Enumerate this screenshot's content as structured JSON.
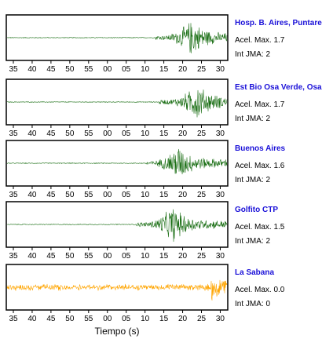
{
  "chart_data": {
    "type": "line",
    "xlabel": "Tiempo (s)",
    "x_tick_labels": [
      "35",
      "40",
      "45",
      "50",
      "55",
      "00",
      "05",
      "10",
      "15",
      "20",
      "25",
      "30"
    ],
    "colors": {
      "recorded": "#1a6e14",
      "no_data": "#ffa500",
      "station_label": "#1a10d8"
    },
    "panels": [
      {
        "station": "Hosp. B. Aires, Puntare",
        "acel_max_text": "Acel. Max. 1.7",
        "int_jma_text": "Int JMA: 2",
        "trace_color": "#1a6e14",
        "onset_tick_index": 7.55,
        "peak_tick_index": 9.5,
        "pre_event_noise": 0.02,
        "peak_amplitude": 0.95
      },
      {
        "station": "Est Bio Osa Verde, Osa",
        "acel_max_text": "Acel. Max. 1.7",
        "int_jma_text": "Int JMA: 2",
        "trace_color": "#1a6e14",
        "onset_tick_index": 7.75,
        "peak_tick_index": 9.8,
        "pre_event_noise": 0.02,
        "peak_amplitude": 0.95
      },
      {
        "station": "Buenos Aires",
        "acel_max_text": "Acel. Max. 1.6",
        "int_jma_text": "Int JMA: 2",
        "trace_color": "#1a6e14",
        "onset_tick_index": 7.05,
        "peak_tick_index": 8.75,
        "pre_event_noise": 0.02,
        "peak_amplitude": 0.95
      },
      {
        "station": "Golfito CTP",
        "acel_max_text": "Acel. Max. 1.5",
        "int_jma_text": "Int JMA: 2",
        "trace_color": "#1a6e14",
        "onset_tick_index": 6.55,
        "peak_tick_index": 8.5,
        "pre_event_noise": 0.02,
        "peak_amplitude": 0.95
      },
      {
        "station": "La Sabana",
        "acel_max_text": "Acel. Max. 0.0",
        "int_jma_text": "Int JMA: 0",
        "trace_color": "#ffa500",
        "onset_tick_index": 10.45,
        "peak_tick_index": 10.55,
        "pre_event_noise": 0.18,
        "peak_amplitude": 0.98
      }
    ]
  }
}
